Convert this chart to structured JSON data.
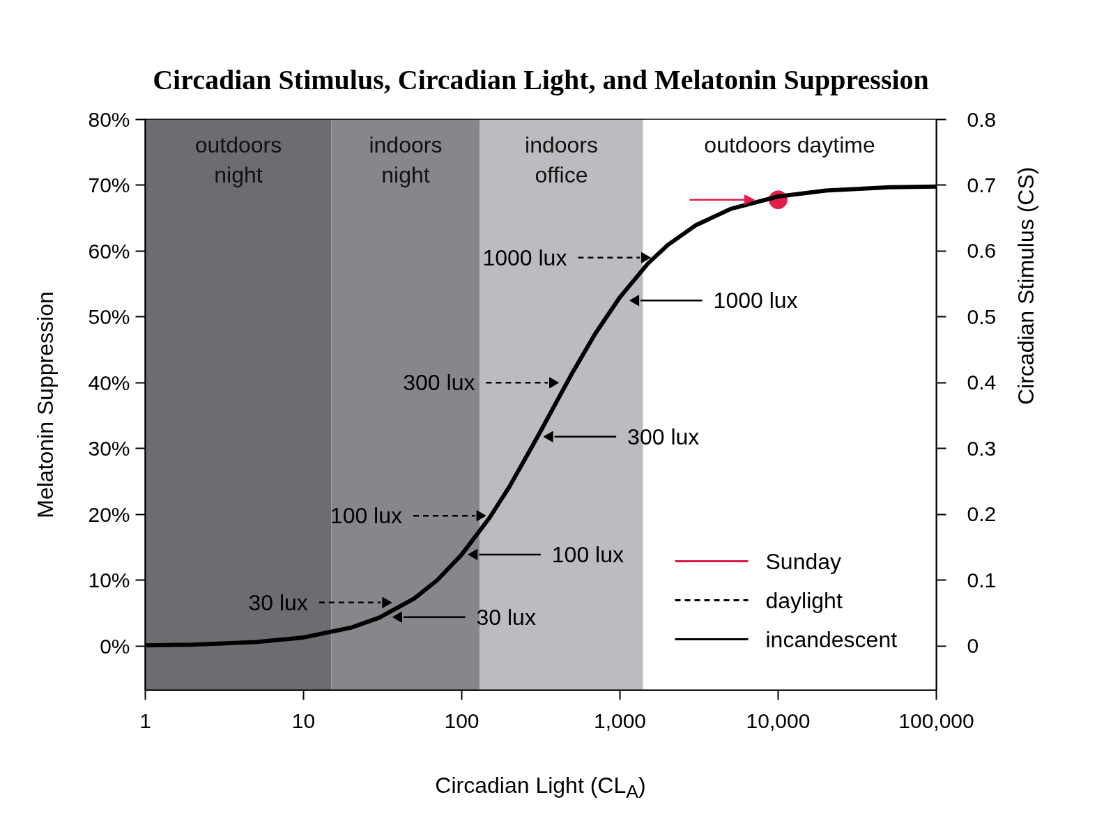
{
  "chart_data": {
    "type": "line",
    "title": "Circadian Stimulus, Circadian Light, and Melatonin Suppression",
    "xlabel": "Circadian Light (CL$_{A}$)",
    "ylabel": "Melatonin Suppression",
    "y2label": "Circadian Stimulus (CS)",
    "log": "x",
    "grid": false,
    "legend": "bottom right",
    "line_style": "solid",
    "xlim": [
      1,
      100000
    ],
    "xticks": [
      1,
      10,
      100,
      {
        "value": 1000,
        "label": "1,000"
      },
      {
        "value": 10000,
        "label": "10,000"
      },
      {
        "value": 100000,
        "label": "100,000"
      }
    ],
    "ylim": [
      -6.7,
      80
    ],
    "yticks": [
      {
        "value": 0,
        "label": "0%"
      },
      {
        "value": 10,
        "label": "10%"
      },
      {
        "value": 20,
        "label": "20%"
      },
      {
        "value": 30,
        "label": "30%"
      },
      {
        "value": 40,
        "label": "40%"
      },
      {
        "value": 50,
        "label": "50%"
      },
      {
        "value": 60,
        "label": "60%"
      },
      {
        "value": 70,
        "label": "70%"
      },
      {
        "value": 80,
        "label": "80%"
      }
    ],
    "y2lim": [
      -0.067,
      0.8
    ],
    "y2ticks": [
      0,
      0.1,
      0.2,
      0.3,
      0.4,
      0.5,
      0.6,
      0.7,
      0.8
    ],
    "bands": [
      {
        "axis": "x",
        "from": 1,
        "to": 15,
        "label": "outdoors\nnight",
        "color": "#6c6d71"
      },
      {
        "axis": "x",
        "from": 15,
        "to": 130,
        "label": "indoors\nnight",
        "color": "#86878b"
      },
      {
        "axis": "x",
        "from": 130,
        "to": 1400,
        "label": "indoors\noffice",
        "color": "#bbbcbf"
      },
      {
        "axis": "x",
        "from": 1400,
        "to": 100000,
        "label": "outdoors daytime",
        "color": "#ffffff"
      }
    ],
    "series": [
      {
        "name": "Sunday",
        "type": "scatter",
        "color": "#e31c4a",
        "marker": "circle",
        "x": [
          10000
        ],
        "values": [
          67.8
        ]
      },
      {
        "name": "daylight",
        "type": "scatter",
        "color": "#000000",
        "marker": "triangle",
        "line_style": "dashed",
        "x": [
          33,
          130,
          375,
          1430
        ],
        "values": [
          6.6,
          19.8,
          40,
          59
        ]
      },
      {
        "type": "scatter",
        "color": "#000000",
        "marker": "triangle",
        "line_style": "solid",
        "x": [
          40,
          120,
          360,
          1260
        ],
        "values": [
          4.4,
          13.9,
          31.8,
          52.5
        ]
      },
      {
        "name": "incandescent",
        "color": "#000000",
        "x": [
          1,
          2,
          5,
          10,
          20,
          30,
          50,
          70,
          100,
          150,
          200,
          300,
          500,
          700,
          1000,
          1500,
          2000,
          3000,
          5000,
          10000,
          20000,
          50000,
          100000
        ],
        "values": [
          0.1,
          0.2,
          0.6,
          1.3,
          2.8,
          4.3,
          7.2,
          10.0,
          13.9,
          19.5,
          24.2,
          31.7,
          41.5,
          47.5,
          53.0,
          58.1,
          60.9,
          63.9,
          66.4,
          68.3,
          69.2,
          69.7,
          69.8
        ]
      }
    ],
    "annotations": [
      "30 lux",
      "100 lux",
      "300 lux",
      "1000 lux",
      "30 lux",
      "100 lux",
      "300 lux",
      "1000 lux"
    ]
  }
}
